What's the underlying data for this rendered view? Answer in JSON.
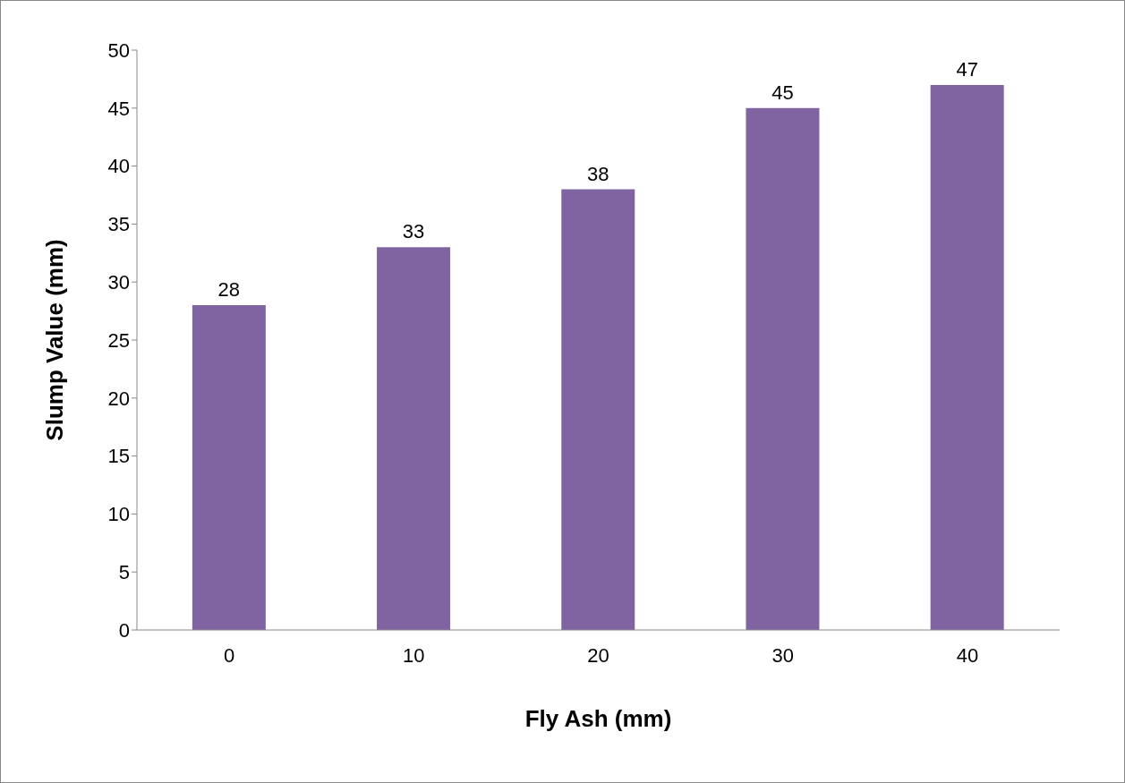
{
  "chart_data": {
    "type": "bar",
    "xlabel": "Fly Ash (mm)",
    "ylabel": "Slump Value (mm)",
    "categories": [
      "0",
      "10",
      "20",
      "30",
      "40"
    ],
    "values": [
      28,
      33,
      38,
      45,
      47
    ],
    "color": "#8064a2",
    "ylim": [
      0,
      50
    ],
    "yticks": [
      0,
      5,
      10,
      15,
      20,
      25,
      30,
      35,
      40,
      45,
      50
    ],
    "data_labels": true,
    "grid": false,
    "legend": false
  }
}
